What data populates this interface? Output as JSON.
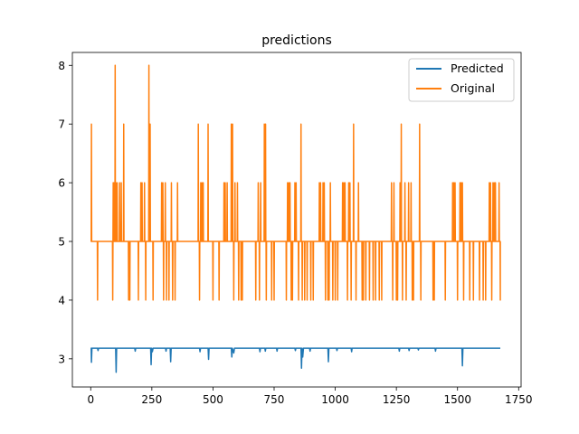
{
  "chart_data": {
    "type": "line",
    "title": "predictions",
    "xlabel": "",
    "ylabel": "",
    "xlim": [
      -75,
      1760
    ],
    "ylim": [
      2.52,
      8.22
    ],
    "xticks": [
      0,
      250,
      500,
      750,
      1000,
      1250,
      1500,
      1750
    ],
    "yticks": [
      3,
      4,
      5,
      6,
      7,
      8
    ],
    "grid": false,
    "legend_position": "top-right",
    "series": [
      {
        "name": "Predicted",
        "color": "#1f77b4",
        "points": [
          [
            0,
            3.18
          ],
          [
            2,
            3.18
          ],
          [
            3,
            2.94
          ],
          [
            5,
            3.18
          ],
          [
            28,
            3.18
          ],
          [
            30,
            3.14
          ],
          [
            32,
            3.18
          ],
          [
            102,
            3.18
          ],
          [
            104,
            2.77
          ],
          [
            106,
            3.18
          ],
          [
            180,
            3.18
          ],
          [
            182,
            3.13
          ],
          [
            184,
            3.18
          ],
          [
            245,
            3.18
          ],
          [
            247,
            2.9
          ],
          [
            249,
            3.18
          ],
          [
            252,
            3.12
          ],
          [
            255,
            3.18
          ],
          [
            306,
            3.18
          ],
          [
            308,
            3.13
          ],
          [
            310,
            3.18
          ],
          [
            325,
            3.18
          ],
          [
            327,
            2.95
          ],
          [
            329,
            3.18
          ],
          [
            445,
            3.18
          ],
          [
            447,
            3.12
          ],
          [
            449,
            3.18
          ],
          [
            480,
            3.18
          ],
          [
            482,
            2.99
          ],
          [
            484,
            3.18
          ],
          [
            575,
            3.18
          ],
          [
            577,
            3.03
          ],
          [
            579,
            3.18
          ],
          [
            585,
            3.1
          ],
          [
            588,
            3.18
          ],
          [
            690,
            3.18
          ],
          [
            692,
            3.12
          ],
          [
            694,
            3.18
          ],
          [
            712,
            3.18
          ],
          [
            714,
            3.13
          ],
          [
            716,
            3.18
          ],
          [
            760,
            3.18
          ],
          [
            762,
            3.13
          ],
          [
            764,
            3.18
          ],
          [
            835,
            3.18
          ],
          [
            837,
            3.14
          ],
          [
            839,
            3.18
          ],
          [
            860,
            3.18
          ],
          [
            862,
            2.84
          ],
          [
            864,
            3.18
          ],
          [
            867,
            3.03
          ],
          [
            870,
            3.18
          ],
          [
            895,
            3.18
          ],
          [
            897,
            3.13
          ],
          [
            899,
            3.18
          ],
          [
            970,
            3.18
          ],
          [
            972,
            2.95
          ],
          [
            974,
            3.18
          ],
          [
            1005,
            3.18
          ],
          [
            1007,
            3.14
          ],
          [
            1009,
            3.18
          ],
          [
            1065,
            3.18
          ],
          [
            1067,
            3.12
          ],
          [
            1069,
            3.18
          ],
          [
            1260,
            3.18
          ],
          [
            1262,
            3.13
          ],
          [
            1264,
            3.18
          ],
          [
            1300,
            3.18
          ],
          [
            1302,
            3.14
          ],
          [
            1304,
            3.18
          ],
          [
            1338,
            3.18
          ],
          [
            1340,
            3.15
          ],
          [
            1342,
            3.18
          ],
          [
            1408,
            3.18
          ],
          [
            1410,
            3.13
          ],
          [
            1412,
            3.18
          ],
          [
            1518,
            3.18
          ],
          [
            1520,
            2.88
          ],
          [
            1522,
            3.18
          ],
          [
            1675,
            3.18
          ]
        ]
      },
      {
        "name": "Original",
        "color": "#ff7f0e",
        "x_end": 1675,
        "baseline": 5,
        "spikes": [
          [
            3,
            7
          ],
          [
            28,
            4
          ],
          [
            90,
            4
          ],
          [
            92,
            6
          ],
          [
            95,
            6
          ],
          [
            100,
            8
          ],
          [
            103,
            6
          ],
          [
            108,
            6
          ],
          [
            118,
            6
          ],
          [
            125,
            6
          ],
          [
            135,
            7
          ],
          [
            155,
            4
          ],
          [
            160,
            4
          ],
          [
            195,
            4
          ],
          [
            205,
            6
          ],
          [
            210,
            6
          ],
          [
            220,
            6
          ],
          [
            225,
            4
          ],
          [
            238,
            8
          ],
          [
            243,
            7
          ],
          [
            255,
            4
          ],
          [
            290,
            6
          ],
          [
            295,
            6
          ],
          [
            298,
            4
          ],
          [
            305,
            6
          ],
          [
            310,
            4
          ],
          [
            320,
            4
          ],
          [
            330,
            6
          ],
          [
            335,
            4
          ],
          [
            345,
            4
          ],
          [
            355,
            6
          ],
          [
            440,
            7
          ],
          [
            445,
            4
          ],
          [
            450,
            6
          ],
          [
            455,
            6
          ],
          [
            460,
            6
          ],
          [
            480,
            7
          ],
          [
            500,
            4
          ],
          [
            525,
            4
          ],
          [
            545,
            6
          ],
          [
            550,
            6
          ],
          [
            558,
            6
          ],
          [
            575,
            7
          ],
          [
            580,
            7
          ],
          [
            585,
            4
          ],
          [
            590,
            6
          ],
          [
            600,
            6
          ],
          [
            605,
            4
          ],
          [
            615,
            4
          ],
          [
            620,
            4
          ],
          [
            675,
            4
          ],
          [
            685,
            6
          ],
          [
            690,
            4
          ],
          [
            695,
            6
          ],
          [
            710,
            7
          ],
          [
            715,
            7
          ],
          [
            718,
            4
          ],
          [
            740,
            4
          ],
          [
            750,
            4
          ],
          [
            800,
            4
          ],
          [
            805,
            6
          ],
          [
            810,
            6
          ],
          [
            815,
            6
          ],
          [
            820,
            4
          ],
          [
            825,
            4
          ],
          [
            835,
            6
          ],
          [
            840,
            6
          ],
          [
            850,
            4
          ],
          [
            860,
            7
          ],
          [
            865,
            4
          ],
          [
            875,
            4
          ],
          [
            885,
            4
          ],
          [
            900,
            4
          ],
          [
            910,
            4
          ],
          [
            935,
            6
          ],
          [
            940,
            6
          ],
          [
            950,
            6
          ],
          [
            955,
            6
          ],
          [
            960,
            4
          ],
          [
            970,
            4
          ],
          [
            975,
            4
          ],
          [
            980,
            6
          ],
          [
            990,
            4
          ],
          [
            1000,
            4
          ],
          [
            1010,
            4
          ],
          [
            1030,
            6
          ],
          [
            1035,
            6
          ],
          [
            1040,
            6
          ],
          [
            1050,
            4
          ],
          [
            1055,
            6
          ],
          [
            1060,
            6
          ],
          [
            1065,
            4
          ],
          [
            1075,
            7
          ],
          [
            1085,
            4
          ],
          [
            1095,
            6
          ],
          [
            1110,
            4
          ],
          [
            1115,
            4
          ],
          [
            1125,
            4
          ],
          [
            1140,
            4
          ],
          [
            1155,
            4
          ],
          [
            1165,
            4
          ],
          [
            1180,
            4
          ],
          [
            1190,
            4
          ],
          [
            1230,
            6
          ],
          [
            1235,
            4
          ],
          [
            1240,
            6
          ],
          [
            1250,
            4
          ],
          [
            1255,
            4
          ],
          [
            1265,
            6
          ],
          [
            1270,
            7
          ],
          [
            1275,
            4
          ],
          [
            1285,
            6
          ],
          [
            1290,
            4
          ],
          [
            1300,
            6
          ],
          [
            1310,
            6
          ],
          [
            1315,
            4
          ],
          [
            1320,
            4
          ],
          [
            1345,
            7
          ],
          [
            1350,
            4
          ],
          [
            1400,
            4
          ],
          [
            1405,
            4
          ],
          [
            1450,
            4
          ],
          [
            1480,
            6
          ],
          [
            1485,
            6
          ],
          [
            1490,
            6
          ],
          [
            1500,
            4
          ],
          [
            1510,
            6
          ],
          [
            1515,
            6
          ],
          [
            1520,
            6
          ],
          [
            1525,
            4
          ],
          [
            1550,
            4
          ],
          [
            1565,
            4
          ],
          [
            1590,
            4
          ],
          [
            1605,
            4
          ],
          [
            1615,
            4
          ],
          [
            1630,
            6
          ],
          [
            1635,
            6
          ],
          [
            1640,
            4
          ],
          [
            1645,
            6
          ],
          [
            1650,
            6
          ],
          [
            1655,
            6
          ],
          [
            1670,
            6
          ],
          [
            1675,
            4
          ]
        ]
      }
    ]
  }
}
